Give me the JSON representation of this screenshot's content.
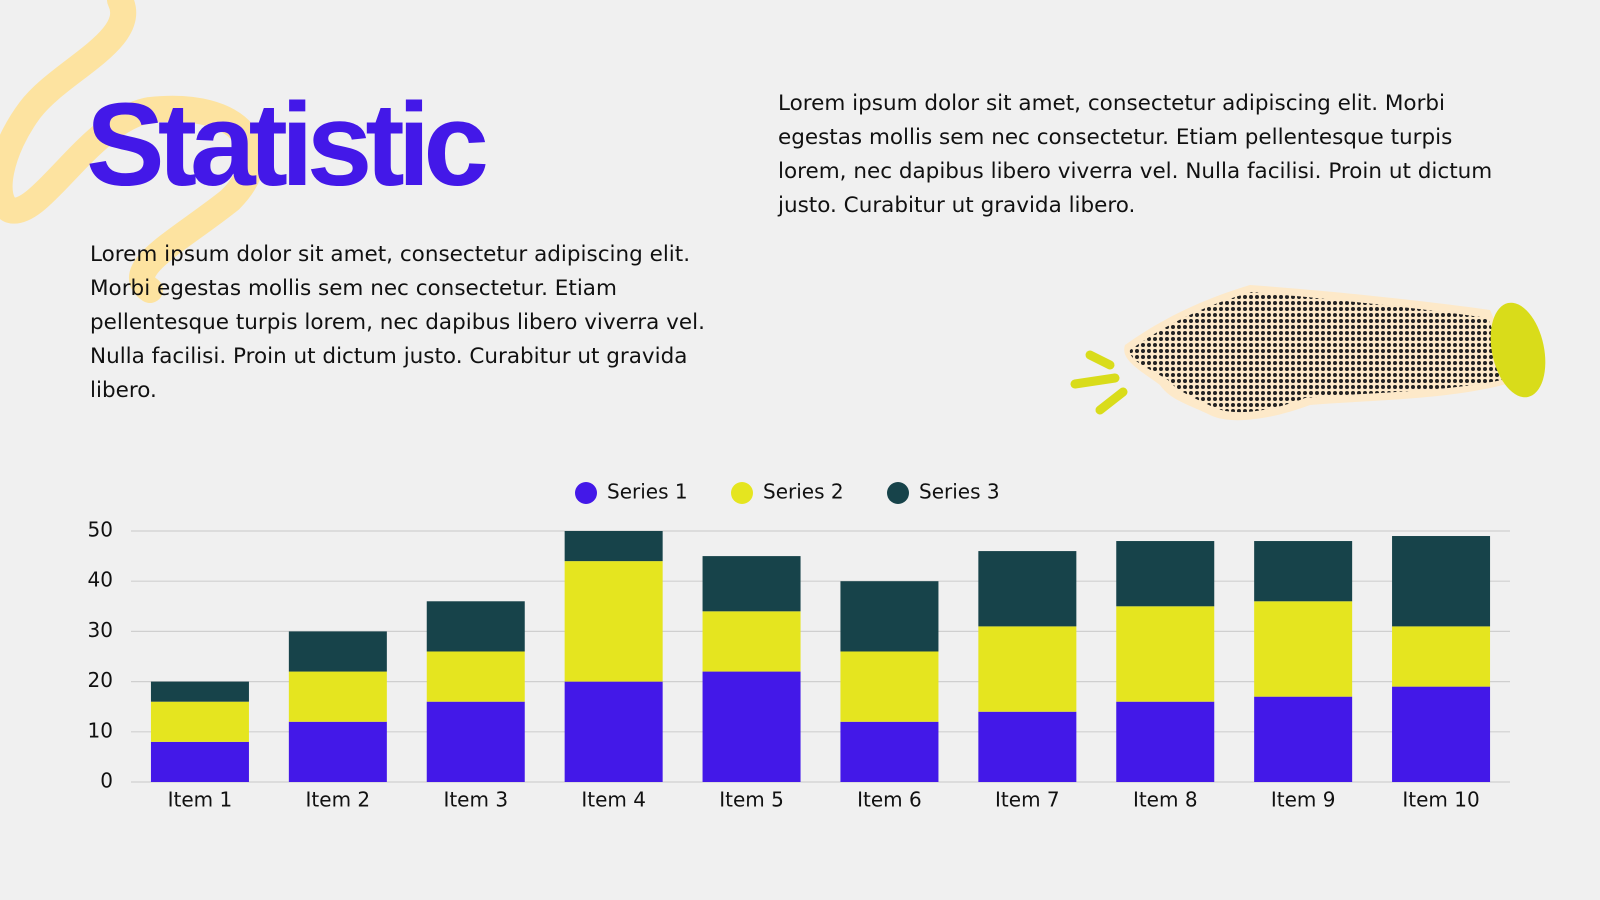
{
  "title": "Statistic",
  "paragraph_left": "Lorem ipsum dolor sit amet, consectetur adipiscing elit. Morbi egestas mollis sem nec consectetur. Etiam pellentesque turpis lorem, nec dapibus libero viverra vel. Nulla facilisi. Proin ut dictum justo. Curabitur ut gravida libero.",
  "paragraph_right": "Lorem ipsum dolor sit amet, consectetur adipiscing elit. Morbi egestas mollis sem nec consectetur. Etiam pellentesque turpis lorem, nec dapibus libero viverra vel. Nulla facilisi. Proin ut dictum justo. Curabitur ut gravida libero.",
  "chart_data": {
    "type": "stacked_bar",
    "categories": [
      "Item 1",
      "Item 2",
      "Item 3",
      "Item 4",
      "Item 5",
      "Item 6",
      "Item 7",
      "Item 8",
      "Item 9",
      "Item 10"
    ],
    "series": [
      {
        "name": "Series 1",
        "color": "#4318e8",
        "values": [
          8,
          12,
          16,
          20,
          22,
          12,
          14,
          16,
          17,
          19
        ]
      },
      {
        "name": "Series 2",
        "color": "#e5e51f",
        "values": [
          8,
          10,
          10,
          24,
          12,
          14,
          17,
          19,
          19,
          12
        ]
      },
      {
        "name": "Series 3",
        "color": "#17434a",
        "values": [
          4,
          8,
          10,
          6,
          11,
          14,
          15,
          13,
          12,
          18
        ]
      }
    ],
    "ylim": [
      0,
      50
    ],
    "yticks": [
      0,
      10,
      20,
      30,
      40,
      50
    ],
    "grid": true,
    "legend": "top"
  }
}
